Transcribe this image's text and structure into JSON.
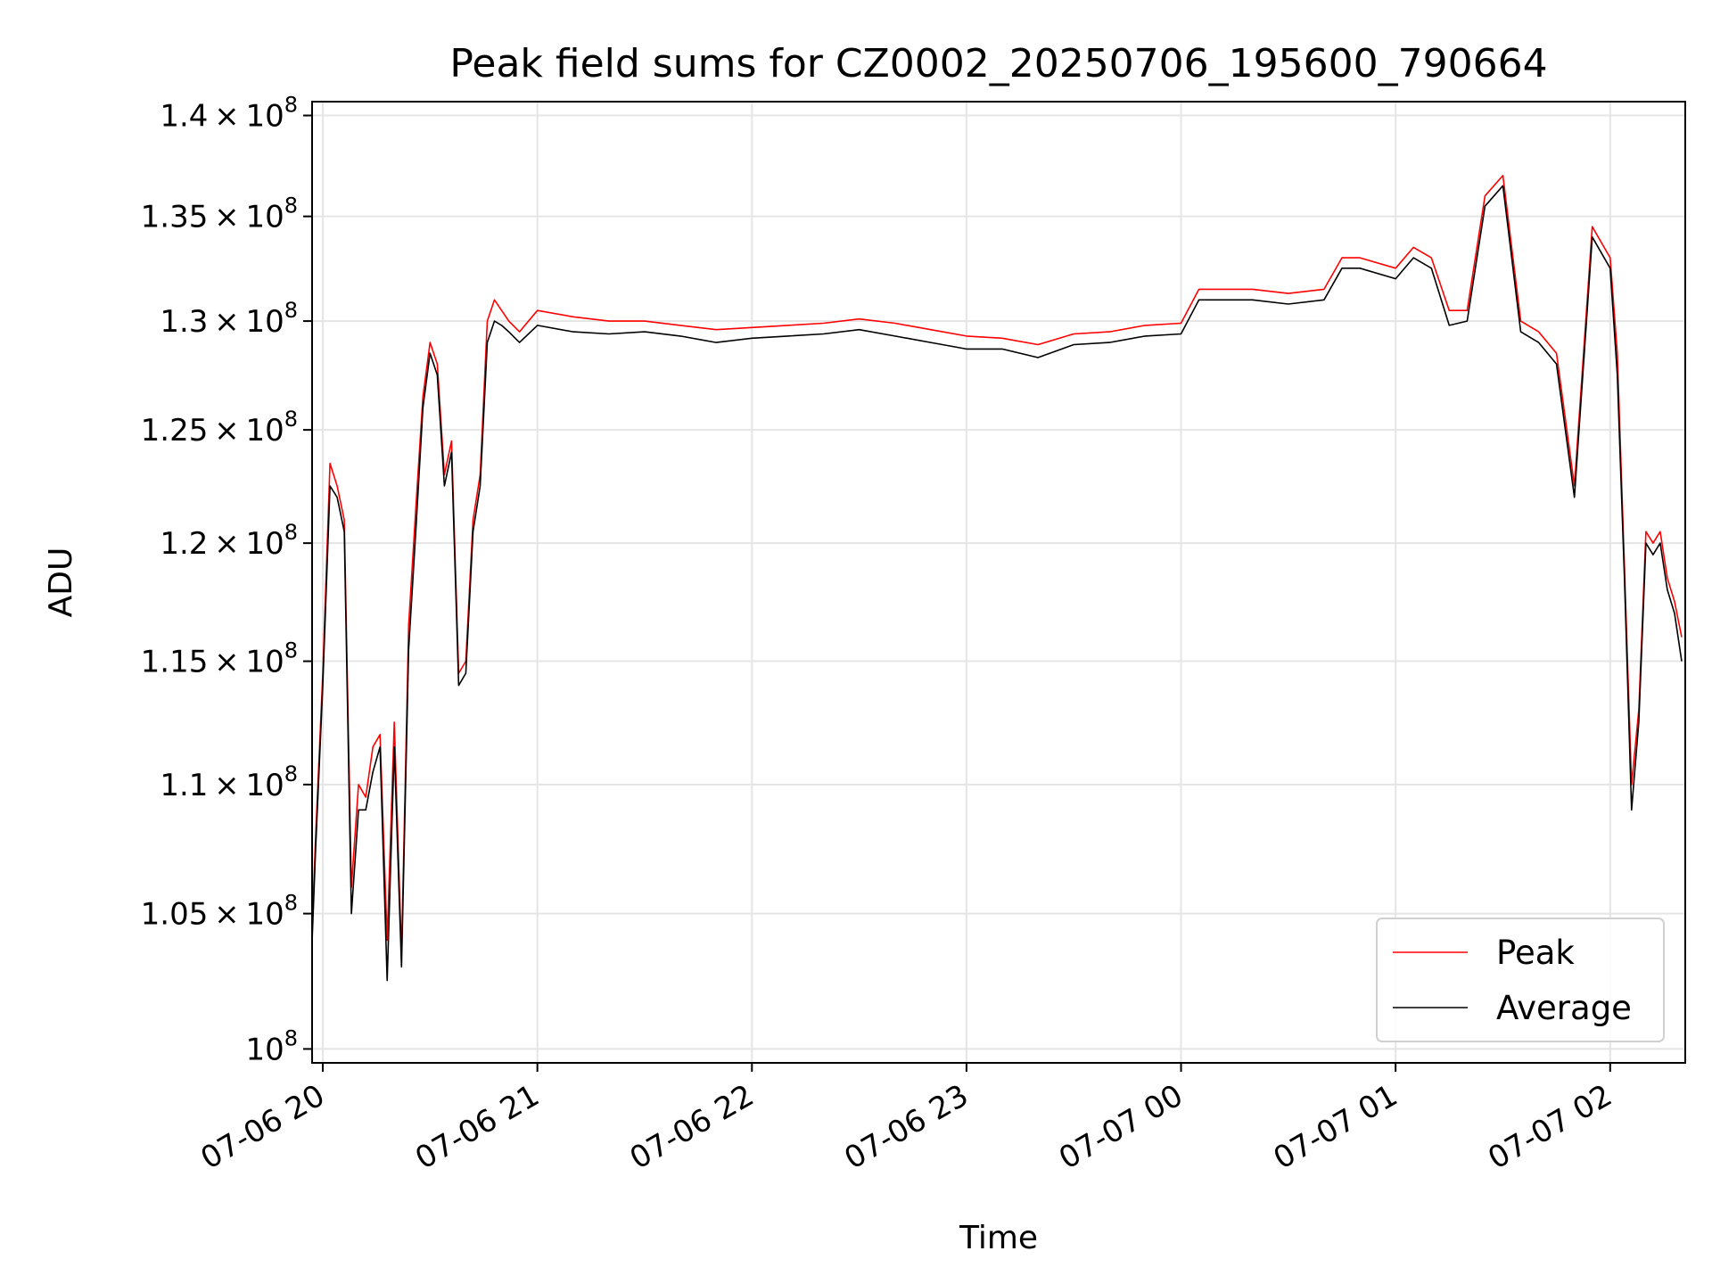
{
  "chart_data": {
    "type": "line",
    "title": "Peak field sums for CZ0002_20250706_195600_790664",
    "xlabel": "Time",
    "ylabel": "ADU",
    "x_ticks": [
      "07-06 20",
      "07-06 21",
      "07-06 22",
      "07-06 23",
      "07-07 00",
      "07-07 01",
      "07-07 02"
    ],
    "xlim": [
      "2025-07-06 19:57",
      "2025-07-07 02:21"
    ],
    "y_scale": "log",
    "ylim": [
      99500000,
      140700000
    ],
    "y_ticks": [
      {
        "value": 100000000,
        "mantissa": "",
        "exp": "8"
      },
      {
        "value": 105000000,
        "mantissa": "1.05",
        "exp": "8"
      },
      {
        "value": 110000000,
        "mantissa": "1.1",
        "exp": "8"
      },
      {
        "value": 115000000,
        "mantissa": "1.15",
        "exp": "8"
      },
      {
        "value": 120000000,
        "mantissa": "1.2",
        "exp": "8"
      },
      {
        "value": 125000000,
        "mantissa": "1.25",
        "exp": "8"
      },
      {
        "value": 130000000,
        "mantissa": "1.3",
        "exp": "8"
      },
      {
        "value": 135000000,
        "mantissa": "1.35",
        "exp": "8"
      },
      {
        "value": 140000000,
        "mantissa": "1.4",
        "exp": "8"
      }
    ],
    "grid": true,
    "legend_position": "lower-right",
    "series": [
      {
        "name": "Peak",
        "color": "#ff0000",
        "x": [
          "2025-07-06 19:56",
          "2025-07-06 19:58",
          "2025-07-06 20:00",
          "2025-07-06 20:02",
          "2025-07-06 20:04",
          "2025-07-06 20:06",
          "2025-07-06 20:08",
          "2025-07-06 20:10",
          "2025-07-06 20:12",
          "2025-07-06 20:14",
          "2025-07-06 20:16",
          "2025-07-06 20:18",
          "2025-07-06 20:20",
          "2025-07-06 20:22",
          "2025-07-06 20:24",
          "2025-07-06 20:26",
          "2025-07-06 20:28",
          "2025-07-06 20:30",
          "2025-07-06 20:32",
          "2025-07-06 20:34",
          "2025-07-06 20:36",
          "2025-07-06 20:38",
          "2025-07-06 20:40",
          "2025-07-06 20:42",
          "2025-07-06 20:44",
          "2025-07-06 20:46",
          "2025-07-06 20:48",
          "2025-07-06 20:50",
          "2025-07-06 20:52",
          "2025-07-06 20:55",
          "2025-07-06 21:00",
          "2025-07-06 21:10",
          "2025-07-06 21:20",
          "2025-07-06 21:30",
          "2025-07-06 21:40",
          "2025-07-06 21:50",
          "2025-07-06 22:00",
          "2025-07-06 22:10",
          "2025-07-06 22:20",
          "2025-07-06 22:30",
          "2025-07-06 22:40",
          "2025-07-06 22:50",
          "2025-07-06 23:00",
          "2025-07-06 23:10",
          "2025-07-06 23:20",
          "2025-07-06 23:30",
          "2025-07-06 23:40",
          "2025-07-06 23:50",
          "2025-07-07 00:00",
          "2025-07-07 00:05",
          "2025-07-07 00:10",
          "2025-07-07 00:20",
          "2025-07-07 00:30",
          "2025-07-07 00:40",
          "2025-07-07 00:45",
          "2025-07-07 00:50",
          "2025-07-07 01:00",
          "2025-07-07 01:05",
          "2025-07-07 01:10",
          "2025-07-07 01:15",
          "2025-07-07 01:20",
          "2025-07-07 01:25",
          "2025-07-07 01:30",
          "2025-07-07 01:35",
          "2025-07-07 01:40",
          "2025-07-07 01:45",
          "2025-07-07 01:50",
          "2025-07-07 01:55",
          "2025-07-07 02:00",
          "2025-07-07 02:02",
          "2025-07-07 02:04",
          "2025-07-07 02:06",
          "2025-07-07 02:08",
          "2025-07-07 02:10",
          "2025-07-07 02:12",
          "2025-07-07 02:14",
          "2025-07-07 02:16",
          "2025-07-07 02:18",
          "2025-07-07 02:20"
        ],
        "y": [
          101000000,
          108000000,
          114500000,
          123500000,
          122500000,
          121000000,
          106000000,
          110000000,
          109500000,
          111500000,
          112000000,
          104000000,
          112500000,
          103500000,
          116500000,
          121500000,
          126500000,
          129000000,
          128000000,
          123000000,
          124500000,
          114500000,
          115000000,
          121000000,
          123000000,
          130000000,
          131000000,
          130500000,
          130000000,
          129500000,
          130500000,
          130200000,
          130000000,
          130000000,
          129800000,
          129600000,
          129700000,
          129800000,
          129900000,
          130100000,
          129900000,
          129600000,
          129300000,
          129200000,
          128900000,
          129400000,
          129500000,
          129800000,
          129900000,
          131500000,
          131500000,
          131500000,
          131300000,
          131500000,
          133000000,
          133000000,
          132500000,
          133500000,
          133000000,
          130500000,
          130500000,
          136000000,
          137000000,
          130000000,
          129500000,
          128500000,
          122500000,
          134500000,
          133000000,
          128500000,
          119000000,
          110000000,
          113000000,
          120500000,
          120000000,
          120500000,
          118500000,
          117500000,
          116000000
        ]
      },
      {
        "name": "Average",
        "color": "#000000",
        "x": [
          "2025-07-06 19:56",
          "2025-07-06 19:58",
          "2025-07-06 20:00",
          "2025-07-06 20:02",
          "2025-07-06 20:04",
          "2025-07-06 20:06",
          "2025-07-06 20:08",
          "2025-07-06 20:10",
          "2025-07-06 20:12",
          "2025-07-06 20:14",
          "2025-07-06 20:16",
          "2025-07-06 20:18",
          "2025-07-06 20:20",
          "2025-07-06 20:22",
          "2025-07-06 20:24",
          "2025-07-06 20:26",
          "2025-07-06 20:28",
          "2025-07-06 20:30",
          "2025-07-06 20:32",
          "2025-07-06 20:34",
          "2025-07-06 20:36",
          "2025-07-06 20:38",
          "2025-07-06 20:40",
          "2025-07-06 20:42",
          "2025-07-06 20:44",
          "2025-07-06 20:46",
          "2025-07-06 20:48",
          "2025-07-06 20:50",
          "2025-07-06 20:52",
          "2025-07-06 20:55",
          "2025-07-06 21:00",
          "2025-07-06 21:10",
          "2025-07-06 21:20",
          "2025-07-06 21:30",
          "2025-07-06 21:40",
          "2025-07-06 21:50",
          "2025-07-06 22:00",
          "2025-07-06 22:10",
          "2025-07-06 22:20",
          "2025-07-06 22:30",
          "2025-07-06 22:40",
          "2025-07-06 22:50",
          "2025-07-06 23:00",
          "2025-07-06 23:10",
          "2025-07-06 23:20",
          "2025-07-06 23:30",
          "2025-07-06 23:40",
          "2025-07-06 23:50",
          "2025-07-07 00:00",
          "2025-07-07 00:05",
          "2025-07-07 00:10",
          "2025-07-07 00:20",
          "2025-07-07 00:30",
          "2025-07-07 00:40",
          "2025-07-07 00:45",
          "2025-07-07 00:50",
          "2025-07-07 01:00",
          "2025-07-07 01:05",
          "2025-07-07 01:10",
          "2025-07-07 01:15",
          "2025-07-07 01:20",
          "2025-07-07 01:25",
          "2025-07-07 01:30",
          "2025-07-07 01:35",
          "2025-07-07 01:40",
          "2025-07-07 01:45",
          "2025-07-07 01:50",
          "2025-07-07 01:55",
          "2025-07-07 02:00",
          "2025-07-07 02:02",
          "2025-07-07 02:04",
          "2025-07-07 02:06",
          "2025-07-07 02:08",
          "2025-07-07 02:10",
          "2025-07-07 02:12",
          "2025-07-07 02:14",
          "2025-07-07 02:16",
          "2025-07-07 02:18",
          "2025-07-07 02:20"
        ],
        "y": [
          100500000,
          107500000,
          114000000,
          122500000,
          122000000,
          120500000,
          105000000,
          109000000,
          109000000,
          110500000,
          111500000,
          102500000,
          111500000,
          103000000,
          115500000,
          120500000,
          126000000,
          128500000,
          127500000,
          122500000,
          124000000,
          114000000,
          114500000,
          120500000,
          122500000,
          129000000,
          130000000,
          129800000,
          129500000,
          129000000,
          129800000,
          129500000,
          129400000,
          129500000,
          129300000,
          129000000,
          129200000,
          129300000,
          129400000,
          129600000,
          129300000,
          129000000,
          128700000,
          128700000,
          128300000,
          128900000,
          129000000,
          129300000,
          129400000,
          131000000,
          131000000,
          131000000,
          130800000,
          131000000,
          132500000,
          132500000,
          132000000,
          133000000,
          132500000,
          129800000,
          130000000,
          135500000,
          136500000,
          129500000,
          129000000,
          128000000,
          122000000,
          134000000,
          132500000,
          127500000,
          118500000,
          109000000,
          112500000,
          120000000,
          119500000,
          120000000,
          118000000,
          117000000,
          115000000
        ]
      }
    ]
  }
}
